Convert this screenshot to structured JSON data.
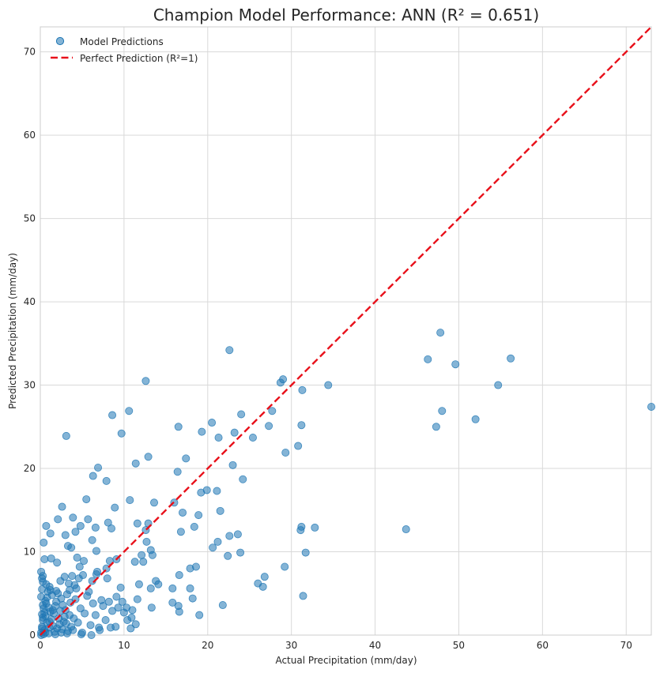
{
  "chart_data": {
    "type": "scatter",
    "title": "Champion Model Performance: ANN (R² = 0.651)",
    "xlabel": "Actual Precipitation (mm/day)",
    "ylabel": "Predicted Precipitation (mm/day)",
    "xlim": [
      0,
      73
    ],
    "ylim": [
      0,
      73
    ],
    "xticks": [
      "0",
      "10",
      "20",
      "30",
      "40",
      "50",
      "60",
      "70"
    ],
    "yticks": [
      "0",
      "10",
      "20",
      "30",
      "40",
      "50",
      "60",
      "70"
    ],
    "grid": true,
    "legend_position": "top-left",
    "series": [
      {
        "name": "Model Predictions",
        "kind": "scatter",
        "color": "#1f77b4",
        "points": [
          [
            0.1,
            0.3
          ],
          [
            0.2,
            1.0
          ],
          [
            0.3,
            2.1
          ],
          [
            0.5,
            0.6
          ],
          [
            0.4,
            3.2
          ],
          [
            0.8,
            1.5
          ],
          [
            1.0,
            0.2
          ],
          [
            1.2,
            2.8
          ],
          [
            0.6,
            4.1
          ],
          [
            1.5,
            1.1
          ],
          [
            1.8,
            3.5
          ],
          [
            2.0,
            0.8
          ],
          [
            2.2,
            2.0
          ],
          [
            2.5,
            4.4
          ],
          [
            0.9,
            5.2
          ],
          [
            1.4,
            4.8
          ],
          [
            2.8,
            1.6
          ],
          [
            3.0,
            3.0
          ],
          [
            3.3,
            0.5
          ],
          [
            3.5,
            2.4
          ],
          [
            0.2,
            5.5
          ],
          [
            0.7,
            3.8
          ],
          [
            1.1,
            0.9
          ],
          [
            1.6,
            2.6
          ],
          [
            2.3,
            1.3
          ],
          [
            2.7,
            3.6
          ],
          [
            0.3,
            1.8
          ],
          [
            0.5,
            2.7
          ],
          [
            1.3,
            1.9
          ],
          [
            1.9,
            4.0
          ],
          [
            0.1,
            4.6
          ],
          [
            0.4,
            0.1
          ],
          [
            2.1,
            5.0
          ],
          [
            2.9,
            2.2
          ],
          [
            3.2,
            4.9
          ],
          [
            3.7,
            1.0
          ],
          [
            1.0,
            3.3
          ],
          [
            0.6,
            2.3
          ],
          [
            1.7,
            0.4
          ],
          [
            2.4,
            2.9
          ],
          [
            0.2,
            2.5
          ],
          [
            0.8,
            4.5
          ],
          [
            3.6,
            3.9
          ],
          [
            4.0,
            2.0
          ],
          [
            4.2,
            4.3
          ],
          [
            1.2,
            5.4
          ],
          [
            0.3,
            3.6
          ],
          [
            2.6,
            0.7
          ],
          [
            3.1,
            1.4
          ],
          [
            1.5,
            3.0
          ],
          [
            4.5,
            1.5
          ],
          [
            4.8,
            3.2
          ],
          [
            5.0,
            0.3
          ],
          [
            5.3,
            2.6
          ],
          [
            5.6,
            4.7
          ],
          [
            6.0,
            1.2
          ],
          [
            6.3,
            3.8
          ],
          [
            6.6,
            2.4
          ],
          [
            7.0,
            0.9
          ],
          [
            7.3,
            4.2
          ],
          [
            4.3,
            5.6
          ],
          [
            4.6,
            6.8
          ],
          [
            5.1,
            7.2
          ],
          [
            5.8,
            5.2
          ],
          [
            6.2,
            6.5
          ],
          [
            6.8,
            7.6
          ],
          [
            7.5,
            3.5
          ],
          [
            7.8,
            1.8
          ],
          [
            8.2,
            4.0
          ],
          [
            8.6,
            2.9
          ],
          [
            9.0,
            1.0
          ],
          [
            9.3,
            3.3
          ],
          [
            9.6,
            5.7
          ],
          [
            10.0,
            2.7
          ],
          [
            10.4,
            1.8
          ],
          [
            10.8,
            0.8
          ],
          [
            11.0,
            3.0
          ],
          [
            11.4,
            1.3
          ],
          [
            4.1,
            6.0
          ],
          [
            3.4,
            6.2
          ],
          [
            2.9,
            7.0
          ],
          [
            3.8,
            7.1
          ],
          [
            4.7,
            8.2
          ],
          [
            5.2,
            8.9
          ],
          [
            4.4,
            9.3
          ],
          [
            6.7,
            7.3
          ],
          [
            7.9,
            8.0
          ],
          [
            8.3,
            8.9
          ],
          [
            9.1,
            9.1
          ],
          [
            8.0,
            6.8
          ],
          [
            0.3,
            7.1
          ],
          [
            0.5,
            9.1
          ],
          [
            1.3,
            9.2
          ],
          [
            2.0,
            8.7
          ],
          [
            0.4,
            11.1
          ],
          [
            0.7,
            13.1
          ],
          [
            1.2,
            12.2
          ],
          [
            2.1,
            13.9
          ],
          [
            2.6,
            15.4
          ],
          [
            3.0,
            12.0
          ],
          [
            3.3,
            10.7
          ],
          [
            3.7,
            10.5
          ],
          [
            3.9,
            14.1
          ],
          [
            4.2,
            12.4
          ],
          [
            4.8,
            13.1
          ],
          [
            5.5,
            16.3
          ],
          [
            5.7,
            13.9
          ],
          [
            6.2,
            11.4
          ],
          [
            6.7,
            10.1
          ],
          [
            6.6,
            12.9
          ],
          [
            8.1,
            13.5
          ],
          [
            8.5,
            12.8
          ],
          [
            8.9,
            15.3
          ],
          [
            10.7,
            16.2
          ],
          [
            11.6,
            13.4
          ],
          [
            12.1,
            9.6
          ],
          [
            12.6,
            12.6
          ],
          [
            12.9,
            13.4
          ],
          [
            13.2,
            10.2
          ],
          [
            13.4,
            9.6
          ],
          [
            13.6,
            15.9
          ],
          [
            11.3,
            8.8
          ],
          [
            11.8,
            6.1
          ],
          [
            12.7,
            11.2
          ],
          [
            3.1,
            23.9
          ],
          [
            6.3,
            19.1
          ],
          [
            6.9,
            20.1
          ],
          [
            7.9,
            18.5
          ],
          [
            8.6,
            26.4
          ],
          [
            9.7,
            24.2
          ],
          [
            10.6,
            26.9
          ],
          [
            11.4,
            20.6
          ],
          [
            12.6,
            30.5
          ],
          [
            12.9,
            21.4
          ],
          [
            12.3,
            8.8
          ],
          [
            13.2,
            5.6
          ],
          [
            13.8,
            6.5
          ],
          [
            14.1,
            6.1
          ],
          [
            13.3,
            3.3
          ],
          [
            15.8,
            3.9
          ],
          [
            16.0,
            15.9
          ],
          [
            16.4,
            19.6
          ],
          [
            16.5,
            25.0
          ],
          [
            16.8,
            12.4
          ],
          [
            17.0,
            14.7
          ],
          [
            17.4,
            21.2
          ],
          [
            17.9,
            5.6
          ],
          [
            18.2,
            4.4
          ],
          [
            18.4,
            13.0
          ],
          [
            18.9,
            14.4
          ],
          [
            19.2,
            17.1
          ],
          [
            19.3,
            24.4
          ],
          [
            19.9,
            17.4
          ],
          [
            20.5,
            25.5
          ],
          [
            20.6,
            10.5
          ],
          [
            21.1,
            17.3
          ],
          [
            21.2,
            11.2
          ],
          [
            21.3,
            23.7
          ],
          [
            21.5,
            14.9
          ],
          [
            21.8,
            3.6
          ],
          [
            22.4,
            9.5
          ],
          [
            22.6,
            34.2
          ],
          [
            22.6,
            11.9
          ],
          [
            23.0,
            20.4
          ],
          [
            23.2,
            24.3
          ],
          [
            23.6,
            12.1
          ],
          [
            23.9,
            9.9
          ],
          [
            24.0,
            26.5
          ],
          [
            24.2,
            18.7
          ],
          [
            25.4,
            23.7
          ],
          [
            26.0,
            6.2
          ],
          [
            26.6,
            5.8
          ],
          [
            26.8,
            7.0
          ],
          [
            27.3,
            25.1
          ],
          [
            27.7,
            26.9
          ],
          [
            28.7,
            30.3
          ],
          [
            29.0,
            30.7
          ],
          [
            29.2,
            8.2
          ],
          [
            29.3,
            21.9
          ],
          [
            30.8,
            22.7
          ],
          [
            31.1,
            12.6
          ],
          [
            31.2,
            25.2
          ],
          [
            31.2,
            13.0
          ],
          [
            31.3,
            29.4
          ],
          [
            31.4,
            4.7
          ],
          [
            31.7,
            9.9
          ],
          [
            32.8,
            12.9
          ],
          [
            34.4,
            30.0
          ],
          [
            43.7,
            12.7
          ],
          [
            46.3,
            33.1
          ],
          [
            47.3,
            25.0
          ],
          [
            47.8,
            36.3
          ],
          [
            48.0,
            26.9
          ],
          [
            49.6,
            32.5
          ],
          [
            52.0,
            25.9
          ],
          [
            54.7,
            30.0
          ],
          [
            56.2,
            33.2
          ],
          [
            73.0,
            27.4
          ],
          [
            16.6,
            7.2
          ],
          [
            17.9,
            8.0
          ],
          [
            18.6,
            8.2
          ],
          [
            19.0,
            2.4
          ],
          [
            16.5,
            3.5
          ],
          [
            16.6,
            2.8
          ],
          [
            15.8,
            5.6
          ],
          [
            9.1,
            4.6
          ],
          [
            9.8,
            4.0
          ],
          [
            10.3,
            3.3
          ],
          [
            10.9,
            2.1
          ],
          [
            11.6,
            4.3
          ],
          [
            0.1,
            0.0
          ],
          [
            0.2,
            0.8
          ],
          [
            0.6,
            0.3
          ],
          [
            1.1,
            1.6
          ],
          [
            1.8,
            0.1
          ],
          [
            2.5,
            0.3
          ],
          [
            3.2,
            0.2
          ],
          [
            3.9,
            0.6
          ],
          [
            4.9,
            0.1
          ],
          [
            6.1,
            0.0
          ],
          [
            7.1,
            0.6
          ],
          [
            8.4,
            0.9
          ],
          [
            0.3,
            6.4
          ],
          [
            0.1,
            7.6
          ],
          [
            0.2,
            6.8
          ],
          [
            1.9,
            5.3
          ],
          [
            1.1,
            5.8
          ],
          [
            0.7,
            6.1
          ],
          [
            2.4,
            6.5
          ],
          [
            3.5,
            5.4
          ]
        ]
      },
      {
        "name": "Perfect Prediction (R²=1)",
        "kind": "line",
        "color": "#e8101a",
        "points": [
          [
            0,
            0
          ],
          [
            73,
            73
          ]
        ]
      }
    ]
  }
}
